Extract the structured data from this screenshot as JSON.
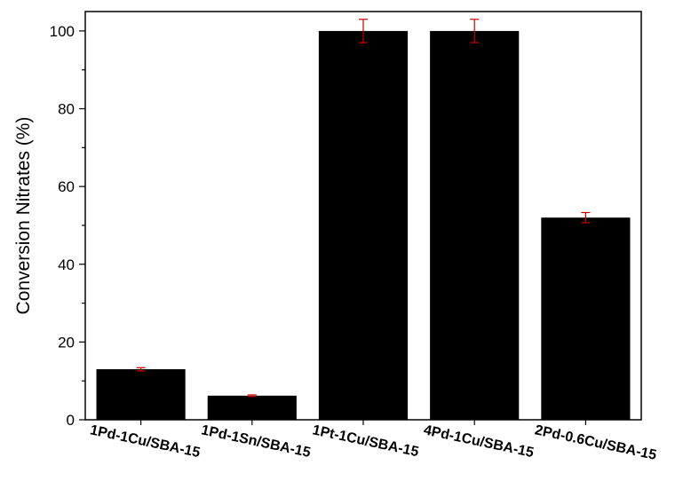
{
  "chart_data": {
    "type": "bar",
    "title": "",
    "xlabel": "",
    "ylabel": "Conversion Nitrates (%)",
    "ylim": [
      0,
      105
    ],
    "yticks": [
      0,
      20,
      40,
      60,
      80,
      100
    ],
    "grid": false,
    "legend": "none",
    "categories": [
      "1Pd-1Cu/SBA-15",
      "1Pd-1Sn/SBA-15",
      "1Pt-1Cu/SBA-15",
      "4Pd-1Cu/SBA-15",
      "2Pd-0.6Cu/SBA-15"
    ],
    "values": [
      13,
      6.2,
      100,
      100,
      52
    ],
    "errors": [
      0.4,
      0.2,
      3,
      3,
      1.3
    ],
    "colors": {
      "bar": "#000000",
      "error_bar": "#cc0000",
      "axis": "#000000"
    }
  }
}
